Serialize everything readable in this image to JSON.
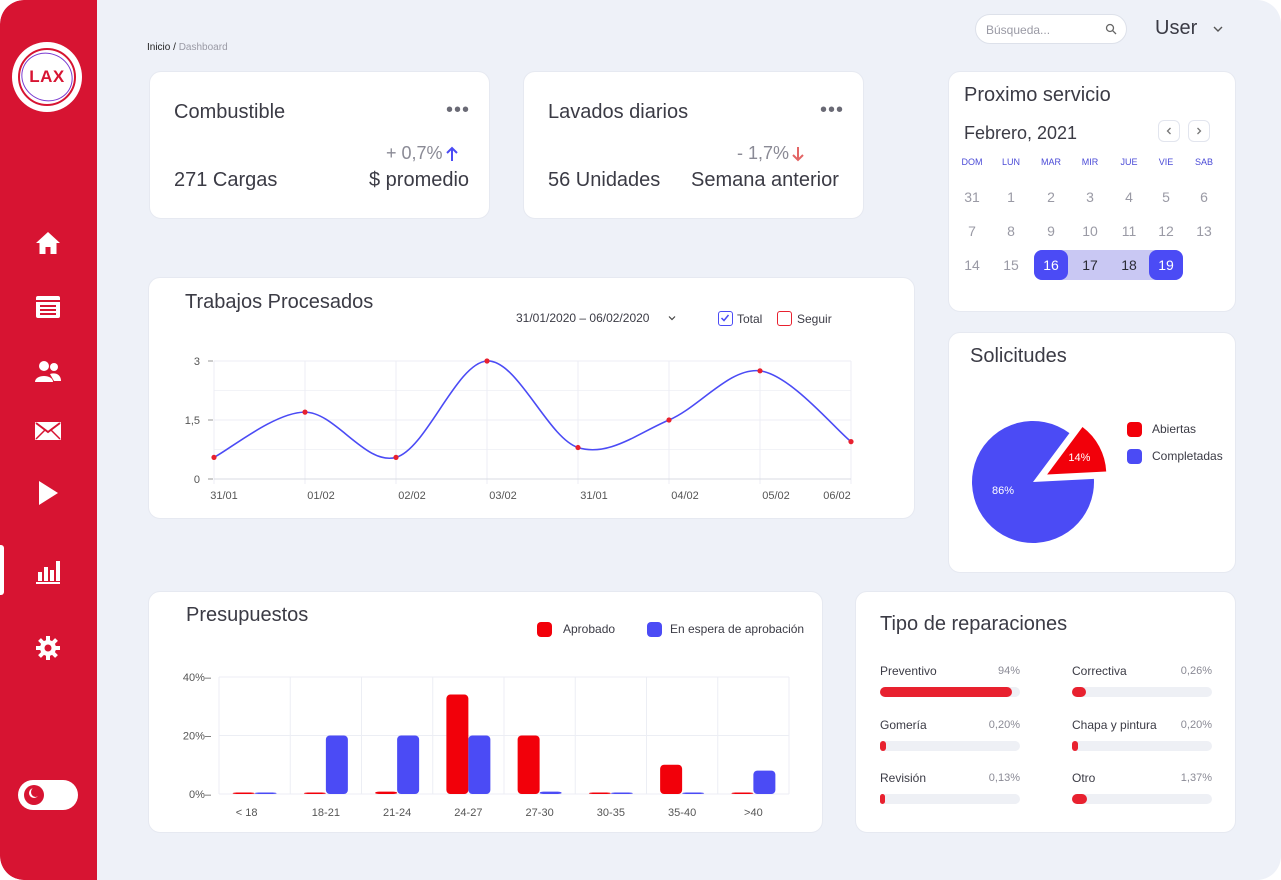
{
  "brand": {
    "logo_text": "LAX",
    "primary_color": "#d71432",
    "accent_color": "#4b4bf5"
  },
  "nav": [
    {
      "icon": "home-icon"
    },
    {
      "icon": "newspaper-icon"
    },
    {
      "icon": "users-icon"
    },
    {
      "icon": "mail-icon"
    },
    {
      "icon": "play-icon"
    },
    {
      "icon": "bar-chart-icon",
      "active": true
    },
    {
      "icon": "gear-icon"
    }
  ],
  "theme_toggle": {
    "icon": "moon-icon"
  },
  "breadcrumb": {
    "root": "Inicio",
    "sep": " / ",
    "current": "Dashboard"
  },
  "search": {
    "placeholder": "Búsqueda..."
  },
  "user": {
    "label": "User"
  },
  "combustible": {
    "title": "Combustible",
    "menu": "•••",
    "value": "271 Cargas",
    "delta": "+ 0,7%",
    "delta_dir": "up",
    "subtitle": "$ promedio"
  },
  "lavados": {
    "title": "Lavados diarios",
    "menu": "•••",
    "value": "56 Unidades",
    "delta": "- 1,7%",
    "delta_dir": "down",
    "subtitle": "Semana anterior"
  },
  "servicio": {
    "title": "Proximo servicio",
    "month": "Febrero, 2021",
    "weekdays": [
      "DOM",
      "LUN",
      "MAR",
      "MIR",
      "JUE",
      "VIE",
      "SAB"
    ],
    "weeks": [
      [
        "31",
        "1",
        "2",
        "3",
        "4",
        "5",
        "6"
      ],
      [
        "7",
        "8",
        "9",
        "10",
        "11",
        "12",
        "13"
      ],
      [
        "14",
        "15",
        "16",
        "17",
        "18",
        "19",
        ""
      ]
    ],
    "range_start": "16",
    "range_end": "19"
  },
  "trabajos": {
    "title": "Trabajos Procesados",
    "date_range": "31/01/2020 – 06/02/2020",
    "legend": [
      {
        "label": "Total",
        "checked": true
      },
      {
        "label": "Seguir",
        "checked": false
      }
    ]
  },
  "solicitudes": {
    "title": "Solicitudes",
    "legend": [
      {
        "label": "Abiertas",
        "color": "#f2000a"
      },
      {
        "label": "Completadas",
        "color": "#4b4bf5"
      }
    ]
  },
  "presupuestos": {
    "title": "Presupuestos",
    "legend": [
      {
        "label": "Aprobado",
        "color": "#f2000a"
      },
      {
        "label": "En espera de aprobación",
        "color": "#4b4bf5"
      }
    ]
  },
  "reparaciones": {
    "title": "Tipo de reparaciones",
    "items": [
      {
        "label": "Preventivo",
        "value": "94%",
        "fill": 0.94
      },
      {
        "label": "Correctiva",
        "value": "0,26%",
        "fill": 0.1
      },
      {
        "label": "Gomería",
        "value": "0,20%",
        "fill": 0.04
      },
      {
        "label": "Chapa y pintura",
        "value": "0,20%",
        "fill": 0.04
      },
      {
        "label": "Revisión",
        "value": "0,13%",
        "fill": 0.03
      },
      {
        "label": "Otro",
        "value": "1,37%",
        "fill": 0.11
      }
    ]
  },
  "chart_data": [
    {
      "type": "line",
      "title": "Trabajos Procesados",
      "categories": [
        "31/01",
        "01/02",
        "02/02",
        "03/02",
        "31/01",
        "04/02",
        "05/02",
        "06/02"
      ],
      "values": [
        0.55,
        1.7,
        0.55,
        3.0,
        0.8,
        1.5,
        2.75,
        0.95
      ],
      "yticks": [
        "3",
        "1,5",
        "0"
      ],
      "ylim": [
        0,
        3
      ],
      "line_color": "#4b4bf5",
      "point_color": "#e8212f"
    },
    {
      "type": "pie",
      "title": "Solicitudes",
      "slices": [
        {
          "label": "Abiertas",
          "value": 14,
          "display": "14%",
          "color": "#f2000a"
        },
        {
          "label": "Completadas",
          "value": 86,
          "display": "86%",
          "color": "#4b4bf5"
        }
      ]
    },
    {
      "type": "bar",
      "title": "Presupuestos",
      "categories": [
        "< 18",
        "18-21",
        "21-24",
        "24-27",
        "27-30",
        "30-35",
        "35-40",
        ">40"
      ],
      "yticks": [
        "40%–",
        "20%–",
        "0%–"
      ],
      "ylim": [
        0,
        40
      ],
      "series": [
        {
          "name": "Aprobado",
          "color": "#f2000a",
          "values": [
            0.5,
            0.3,
            0.8,
            34,
            20,
            0.5,
            10,
            0.5
          ]
        },
        {
          "name": "En espera de aprobación",
          "color": "#4b4bf5",
          "values": [
            0.5,
            20,
            20,
            20,
            0.8,
            0.5,
            0.5,
            8
          ]
        }
      ]
    }
  ]
}
